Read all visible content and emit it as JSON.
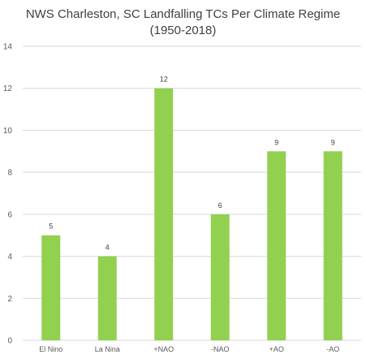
{
  "chart_data": {
    "type": "bar",
    "title_line1": "NWS Charleston, SC Landfalling TCs Per Climate Regime",
    "title_line2": "(1950-2018)",
    "categories": [
      "El Nino",
      "La Nina",
      "+NAO",
      "-NAO",
      "+AO",
      "-AO"
    ],
    "values": [
      5,
      4,
      12,
      6,
      9,
      9
    ],
    "y_ticks": [
      "0",
      "2",
      "4",
      "6",
      "8",
      "10",
      "12",
      "14"
    ],
    "ylim": [
      0,
      14
    ],
    "grid": true,
    "data_labels": true,
    "bar_color": "#92D050",
    "grid_color": "#D9D9D9"
  }
}
